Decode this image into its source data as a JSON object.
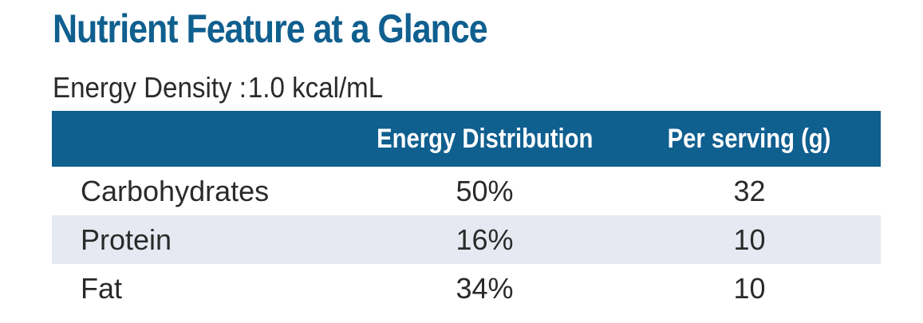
{
  "title": "Nutrient Feature at a Glance",
  "energy_density": {
    "label": "Energy Density",
    "separator": ":",
    "value": "1.0 kcal/mL"
  },
  "table": {
    "columns": [
      "",
      "Energy Distribution",
      "Per serving (g)"
    ],
    "rows": [
      {
        "nutrient": "Carbohydrates",
        "energy_distribution": "50%",
        "per_serving_g": "32"
      },
      {
        "nutrient": "Protein",
        "energy_distribution": "16%",
        "per_serving_g": "10"
      },
      {
        "nutrient": "Fat",
        "energy_distribution": "34%",
        "per_serving_g": "10"
      }
    ]
  },
  "colors": {
    "brand_blue": "#0f5f8f",
    "row_stripe": "#e6e9f1",
    "body_text": "#2a2a2a"
  }
}
